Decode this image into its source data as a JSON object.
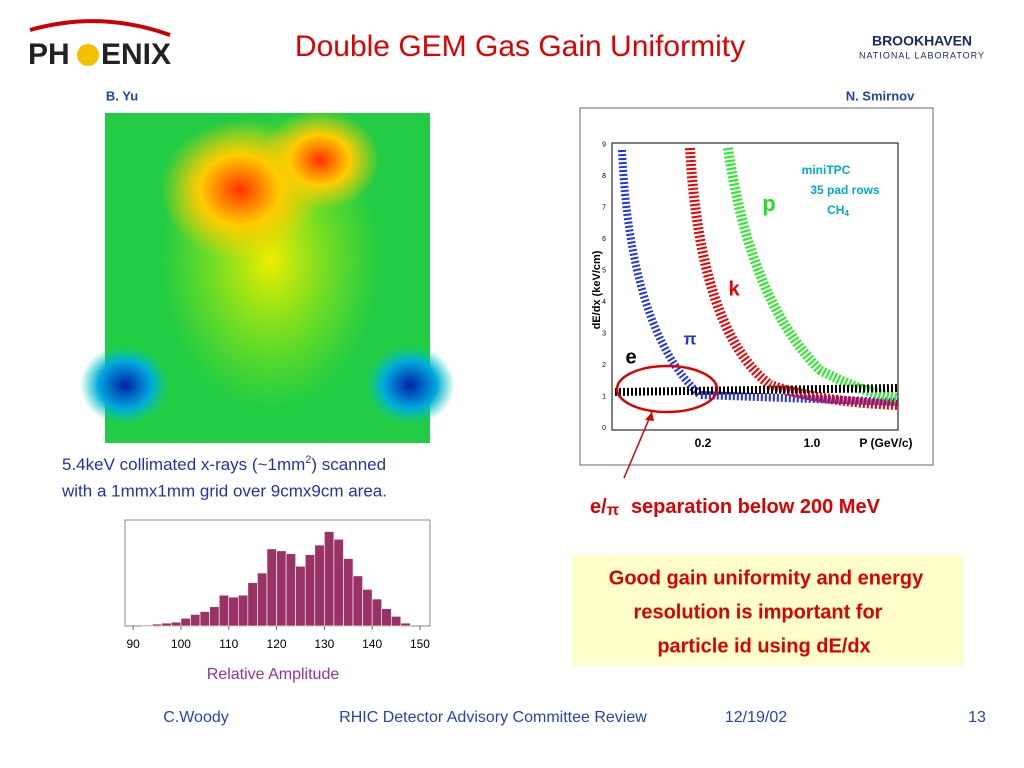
{
  "header": {
    "title": "Double GEM Gas Gain Uniformity",
    "logo_left": [
      "PH",
      "ENIX"
    ],
    "logo_right": [
      "BROOKHAVEN",
      "NATIONAL LABORATORY"
    ]
  },
  "left": {
    "author": "B. Yu",
    "caption": [
      "5.4keV collimated x-rays (~1mm",
      "2",
      ") scanned",
      "with a 1mmx1mm grid over 9cmx9cm area."
    ]
  },
  "chart_data": [
    {
      "type": "histogram",
      "xlabel": "Relative Amplitude",
      "color": "#993366",
      "bins": [
        92,
        94,
        96,
        98,
        100,
        102,
        104,
        106,
        108,
        110,
        112,
        114,
        116,
        118,
        120,
        122,
        124,
        126,
        128,
        130,
        132,
        134,
        136,
        138,
        140,
        142,
        144,
        146,
        148
      ],
      "values": [
        1,
        2,
        3,
        4,
        8,
        12,
        15,
        20,
        32,
        30,
        32,
        45,
        55,
        80,
        78,
        75,
        62,
        74,
        84,
        98,
        90,
        70,
        52,
        38,
        28,
        18,
        10,
        3
      ],
      "xlim": [
        88.3,
        152.1
      ],
      "ylim": [
        0,
        110
      ],
      "xticks": [
        90,
        100,
        110,
        120,
        130,
        140,
        150
      ]
    }
  ],
  "right": {
    "author": "N. Smirnov",
    "ylabel": "dE/dx (keV/cm)",
    "yticks": [
      "0",
      "1",
      "2",
      "3",
      "4",
      "5",
      "6",
      "7",
      "8",
      "9"
    ],
    "xticks": [
      "0.2",
      "1.0"
    ],
    "xlabel": "P (GeV/c)",
    "legend": [
      "miniTPC",
      "35 pad rows"
    ],
    "gas": [
      "CH",
      "4"
    ],
    "particles": [
      "e",
      "π",
      "k",
      "p"
    ],
    "note": [
      "e/",
      "π",
      "separation below 200 MeV"
    ]
  },
  "box": [
    "Good gain uniformity and energy",
    "resolution is important for",
    "particle id using dE/dx"
  ],
  "footer": [
    "C.Woody",
    "RHIC Detector Advisory Committee Review",
    "12/19/02",
    "13"
  ]
}
